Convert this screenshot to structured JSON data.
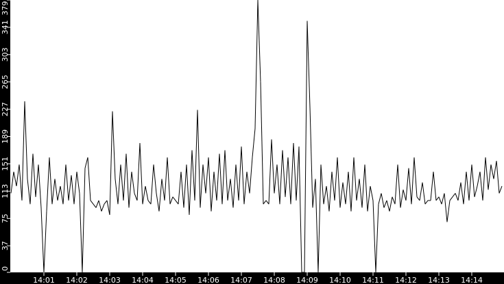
{
  "chart_data": {
    "type": "line",
    "title": "",
    "xlabel": "",
    "ylabel": "",
    "x_start": "14:00:00",
    "x_step_seconds": 5,
    "x_tick_labels": [
      "14:01",
      "14:02",
      "14:03",
      "14:04",
      "14:05",
      "14:06",
      "14:07",
      "14:08",
      "14:09",
      "14:10",
      "14:11",
      "14:12",
      "14:13",
      "14:14"
    ],
    "y_tick_labels": [
      "0",
      "37",
      "75",
      "113",
      "151",
      "189",
      "227",
      "265",
      "303",
      "341",
      "379"
    ],
    "ylim": [
      0,
      379
    ],
    "xlim": [
      "14:00:00",
      "14:15:00"
    ],
    "grid": false,
    "colors": {
      "line": "#000000",
      "plot_background": "#ffffff",
      "axis_background": "#000000",
      "axis_text": "#ffffff"
    },
    "values": [
      110,
      140,
      120,
      150,
      100,
      238,
      130,
      95,
      165,
      105,
      150,
      90,
      0,
      85,
      160,
      95,
      130,
      100,
      120,
      95,
      150,
      100,
      135,
      95,
      140,
      110,
      0,
      145,
      160,
      100,
      95,
      90,
      100,
      85,
      95,
      100,
      80,
      224,
      130,
      95,
      150,
      100,
      165,
      90,
      140,
      110,
      100,
      180,
      95,
      120,
      100,
      95,
      150,
      110,
      85,
      130,
      100,
      160,
      95,
      105,
      100,
      95,
      140,
      90,
      150,
      80,
      170,
      100,
      226,
      90,
      150,
      110,
      160,
      85,
      140,
      100,
      165,
      95,
      170,
      100,
      130,
      90,
      150,
      100,
      175,
      95,
      140,
      110,
      160,
      200,
      379,
      265,
      95,
      100,
      95,
      185,
      110,
      150,
      95,
      170,
      105,
      160,
      95,
      180,
      100,
      175,
      0,
      0,
      350,
      230,
      90,
      130,
      0,
      150,
      95,
      120,
      85,
      140,
      100,
      160,
      90,
      125,
      95,
      140,
      85,
      160,
      100,
      130,
      90,
      150,
      85,
      120,
      100,
      0,
      95,
      110,
      90,
      100,
      85,
      105,
      95,
      150,
      90,
      115,
      100,
      145,
      95,
      160,
      105,
      100,
      125,
      95,
      100,
      100,
      140,
      100,
      105,
      95,
      110,
      70,
      100,
      105,
      110,
      100,
      125,
      95,
      140,
      100,
      150,
      105,
      120,
      140,
      100,
      160,
      115,
      150,
      130,
      155,
      110,
      120
    ]
  }
}
